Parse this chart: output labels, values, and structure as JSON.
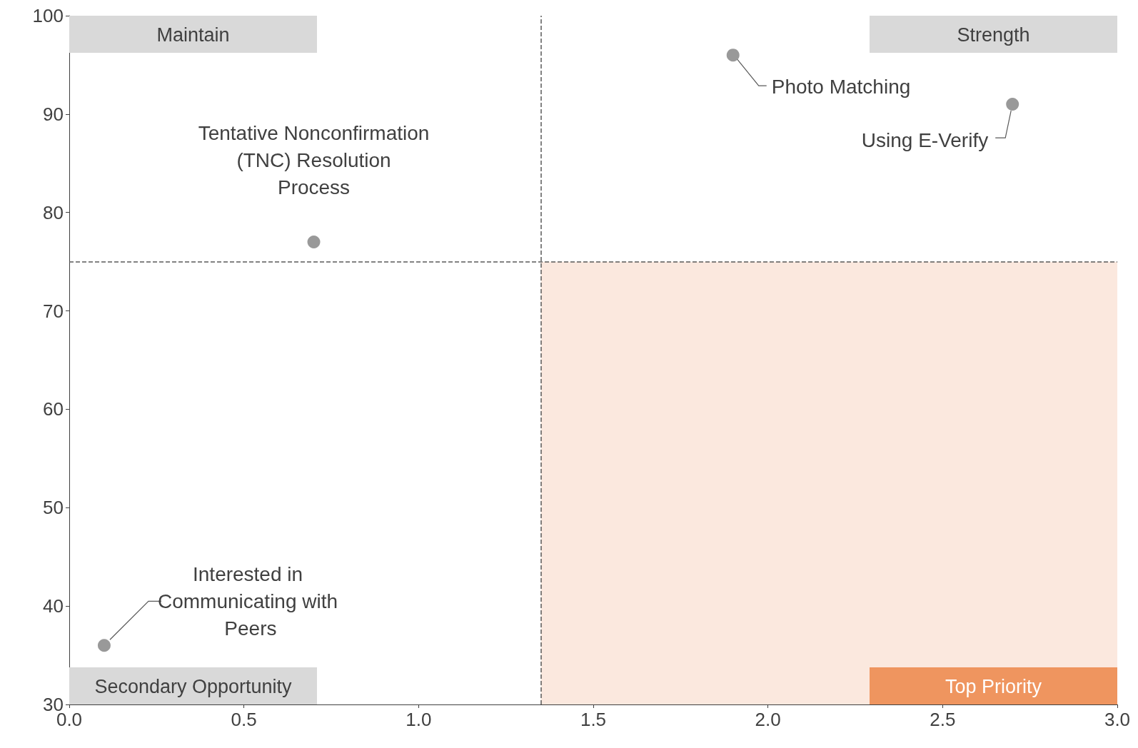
{
  "chart_data": {
    "type": "scatter",
    "x": [
      0.1,
      0.7,
      1.9,
      2.7
    ],
    "values": [
      36,
      77,
      96,
      91
    ],
    "color": "#7f7f7f",
    "marker": "circle",
    "xlim": [
      0,
      3
    ],
    "xticks": [
      {
        "value": 0,
        "label": "0.0"
      },
      0.5,
      {
        "value": 1,
        "label": "1.0"
      },
      1.5,
      {
        "value": 2,
        "label": "2.0"
      },
      2.5,
      {
        "value": 3,
        "label": "3.0"
      }
    ],
    "ylim": [
      30,
      100
    ],
    "yticks": [
      30,
      40,
      50,
      60,
      70,
      80,
      90,
      100
    ],
    "grid": false,
    "ref_lines": [
      {
        "axis": "x",
        "value": 1.35,
        "color": "#595959",
        "line_style": "dashed"
      },
      {
        "axis": "y",
        "value": 75,
        "color": "#595959",
        "line_style": "dashed"
      }
    ],
    "bands": [
      {
        "axis": "x",
        "from": 1.35,
        "to": 3,
        "color": "#fbe8de"
      }
    ],
    "annotations": [
      {
        "text": "Interested in Communicating with Peers",
        "x": 0.1,
        "y": 36
      },
      {
        "text": "Tentative Nonconfirmation (TNC) Resolution Process",
        "x": 0.7,
        "y": 77
      },
      {
        "text": "Photo Matching",
        "x": 1.9,
        "y": 96
      },
      {
        "text": "Using E-Verify",
        "x": 2.7,
        "y": 91
      },
      "Maintain",
      "Strength",
      "Secondary Opportunity",
      "Top Priority"
    ]
  }
}
